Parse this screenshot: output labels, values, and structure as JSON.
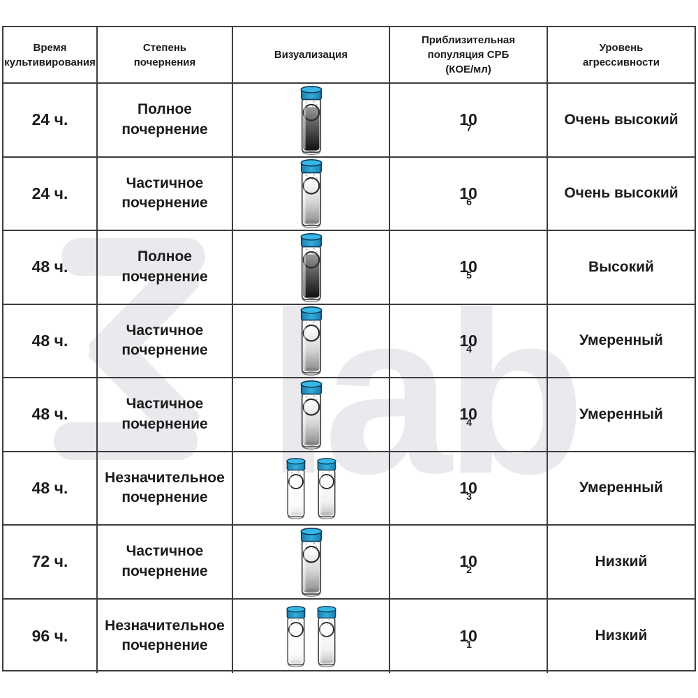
{
  "watermark": {
    "text": "lab",
    "color": "#e9e9ee"
  },
  "colors": {
    "border": "#3d3d3d",
    "text": "#1c1c1c",
    "cap_blue_top": "#38b6e6",
    "cap_blue_side": "#1b7fae",
    "watermark_gray": "#e9e9ee"
  },
  "table": {
    "headers": [
      {
        "id": "time",
        "lines": [
          "Время",
          "культивирования"
        ]
      },
      {
        "id": "degree",
        "lines": [
          "Степень",
          "почернения"
        ]
      },
      {
        "id": "visual",
        "lines": [
          "Визуализация"
        ]
      },
      {
        "id": "population",
        "lines": [
          "Приблизительная",
          "популяция СРБ",
          "(КОЕ/мл)"
        ]
      },
      {
        "id": "level",
        "lines": [
          "Уровень",
          "агрессивности"
        ]
      }
    ],
    "rows": [
      {
        "time": "24 ч.",
        "degree_lines": [
          "Полное",
          "почернение"
        ],
        "vials": [
          "dark"
        ],
        "population": {
          "base": "10",
          "exp": "7"
        },
        "level": "Очень высокий"
      },
      {
        "time": "24 ч.",
        "degree_lines": [
          "Частичное",
          "почернение"
        ],
        "vials": [
          "partial"
        ],
        "population": {
          "base": "10",
          "exp": "6"
        },
        "level": "Очень высокий"
      },
      {
        "time": "48 ч.",
        "degree_lines": [
          "Полное",
          "почернение"
        ],
        "vials": [
          "dark"
        ],
        "population": {
          "base": "10",
          "exp": "5"
        },
        "level": "Высокий"
      },
      {
        "time": "48 ч.",
        "degree_lines": [
          "Частичное",
          "почернение"
        ],
        "vials": [
          "partial"
        ],
        "population": {
          "base": "10",
          "exp": "4"
        },
        "level": "Умеренный"
      },
      {
        "time": "48 ч.",
        "degree_lines": [
          "Частичное",
          "почернение"
        ],
        "vials": [
          "partial"
        ],
        "population": {
          "base": "10",
          "exp": "4"
        },
        "level": "Умеренный"
      },
      {
        "time": "48 ч.",
        "degree_lines": [
          "Незначительное",
          "почернение"
        ],
        "vials": [
          "lightest",
          "light"
        ],
        "population": {
          "base": "10",
          "exp": "3"
        },
        "level": "Умеренный"
      },
      {
        "time": "72 ч.",
        "degree_lines": [
          "Частичное",
          "почернение"
        ],
        "vials": [
          "partial"
        ],
        "population": {
          "base": "10",
          "exp": "2"
        },
        "level": "Низкий"
      },
      {
        "time": "96 ч.",
        "degree_lines": [
          "Незначительное",
          "почернение"
        ],
        "vials": [
          "lightest",
          "light"
        ],
        "population": {
          "base": "10",
          "exp": "1"
        },
        "level": "Низкий"
      }
    ]
  }
}
